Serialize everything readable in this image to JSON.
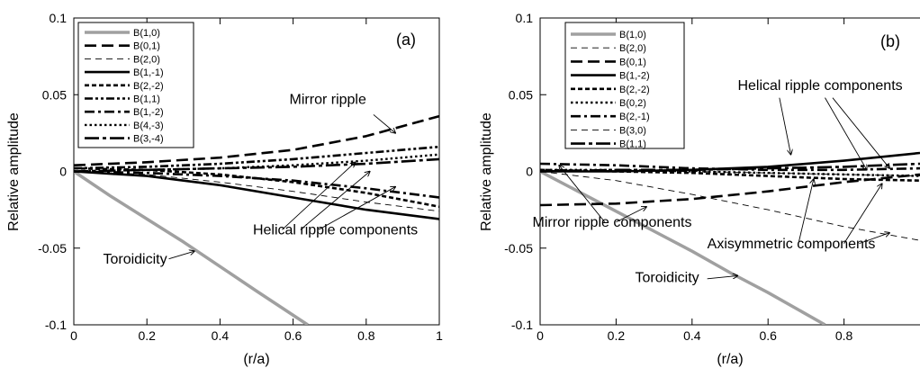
{
  "chart_data": [
    {
      "type": "line",
      "panel_label": "(a)",
      "xlabel": "(r/a)",
      "ylabel": "Relative amplitude",
      "xlim": [
        0,
        1
      ],
      "ylim": [
        -0.1,
        0.1
      ],
      "x_ticks": [
        "0",
        "0.2",
        "0.4",
        "0.6",
        "0.8",
        "1"
      ],
      "y_ticks": [
        "0.1",
        "0.05",
        "0",
        "-0.05",
        "-0.1"
      ],
      "x_tick_values": [
        0,
        0.2,
        0.4,
        0.6,
        0.8,
        1
      ],
      "y_tick_values": [
        0.1,
        0.05,
        0,
        -0.05,
        -0.1
      ],
      "legend_position": "top-left",
      "series": [
        {
          "name": "B(1,0)",
          "style": "gray",
          "x": [
            0,
            0.1,
            0.2,
            0.3,
            0.4,
            0.5,
            0.64
          ],
          "y": [
            0,
            -0.016,
            -0.031,
            -0.046,
            -0.062,
            -0.078,
            -0.1
          ]
        },
        {
          "name": "B(0,1)",
          "style": "longdash",
          "x": [
            0,
            0.2,
            0.4,
            0.6,
            0.8,
            1
          ],
          "y": [
            0.004,
            0.006,
            0.009,
            0.014,
            0.023,
            0.036
          ]
        },
        {
          "name": "B(2,0)",
          "style": "thindash",
          "x": [
            0,
            0.2,
            0.4,
            0.6,
            0.8,
            1
          ],
          "y": [
            0,
            -0.002,
            -0.007,
            -0.013,
            -0.02,
            -0.026
          ]
        },
        {
          "name": "B(1,-1)",
          "style": "solid",
          "x": [
            0,
            0.2,
            0.4,
            0.6,
            0.8,
            1
          ],
          "y": [
            0,
            -0.003,
            -0.009,
            -0.017,
            -0.025,
            -0.031
          ]
        },
        {
          "name": "B(2,-2)",
          "style": "shortdash",
          "x": [
            0,
            0.2,
            0.4,
            0.6,
            0.8,
            1
          ],
          "y": [
            0.002,
            0.001,
            -0.002,
            -0.007,
            -0.014,
            -0.023
          ]
        },
        {
          "name": "B(1,1)",
          "style": "dashdotdot",
          "x": [
            0,
            0.2,
            0.4,
            0.6,
            0.8,
            1
          ],
          "y": [
            0.002,
            0.003,
            0.005,
            0.008,
            0.012,
            0.016
          ]
        },
        {
          "name": "B(1,-2)",
          "style": "dashdot",
          "x": [
            0,
            0.2,
            0.4,
            0.6,
            0.8,
            1
          ],
          "y": [
            0,
            -0.001,
            -0.003,
            -0.006,
            -0.011,
            -0.017
          ]
        },
        {
          "name": "B(4,-3)",
          "style": "dotted",
          "x": [
            0,
            0.2,
            0.4,
            0.6,
            0.8,
            1
          ],
          "y": [
            0,
            0.001,
            0.002,
            0.004,
            0.007,
            0.011
          ]
        },
        {
          "name": "B(3,-4)",
          "style": "longdashdot",
          "x": [
            0,
            0.2,
            0.4,
            0.6,
            0.8,
            1
          ],
          "y": [
            0,
            0.001,
            0.002,
            0.003,
            0.005,
            0.008
          ]
        }
      ],
      "annotations": [
        {
          "text": "Mirror ripple",
          "x": 0.59,
          "y": 0.044,
          "arrows": [
            {
              "from": [
                0.82,
                0.037
              ],
              "to": [
                0.88,
                0.025
              ]
            }
          ]
        },
        {
          "text": "Helical ripple components",
          "x": 0.49,
          "y": -0.041,
          "arrows": [
            {
              "from": [
                0.57,
                -0.038
              ],
              "to": [
                0.77,
                0.006
              ]
            },
            {
              "from": [
                0.62,
                -0.038
              ],
              "to": [
                0.81,
                0.0
              ]
            },
            {
              "from": [
                0.67,
                -0.038
              ],
              "to": [
                0.88,
                -0.01
              ]
            }
          ]
        },
        {
          "text": "Toroidicity",
          "x": 0.08,
          "y": -0.06,
          "arrows": [
            {
              "from": [
                0.26,
                -0.057
              ],
              "to": [
                0.33,
                -0.052
              ]
            }
          ]
        }
      ]
    },
    {
      "type": "line",
      "panel_label": "(b)",
      "xlabel": "(r/a)",
      "ylabel": "Relative amplitude",
      "xlim": [
        0,
        1
      ],
      "ylim": [
        -0.1,
        0.1
      ],
      "x_ticks": [
        "0",
        "0.2",
        "0.4",
        "0.6",
        "0.8"
      ],
      "y_ticks": [
        "0.1",
        "0.05",
        "0",
        "-0.05",
        "-0.1"
      ],
      "x_tick_values": [
        0,
        0.2,
        0.4,
        0.6,
        0.8
      ],
      "y_tick_values": [
        0.1,
        0.05,
        0,
        -0.05,
        -0.1
      ],
      "legend_position": "top-left",
      "series": [
        {
          "name": "B(1,0)",
          "style": "gray",
          "x": [
            0,
            0.1,
            0.2,
            0.3,
            0.4,
            0.5,
            0.6,
            0.75
          ],
          "y": [
            0,
            -0.013,
            -0.026,
            -0.039,
            -0.052,
            -0.066,
            -0.079,
            -0.1
          ]
        },
        {
          "name": "B(2,0)",
          "style": "thindash",
          "x": [
            0,
            0.2,
            0.4,
            0.6,
            0.8,
            1
          ],
          "y": [
            0,
            -0.006,
            -0.015,
            -0.025,
            -0.036,
            -0.045
          ]
        },
        {
          "name": "B(0,1)",
          "style": "longdash",
          "x": [
            0,
            0.2,
            0.4,
            0.6,
            0.8,
            1
          ],
          "y": [
            -0.022,
            -0.021,
            -0.018,
            -0.013,
            -0.007,
            -0.002
          ]
        },
        {
          "name": "B(1,-2)",
          "style": "solid",
          "x": [
            0,
            0.2,
            0.4,
            0.6,
            0.8,
            1
          ],
          "y": [
            0,
            0.0,
            0.001,
            0.003,
            0.007,
            0.012
          ]
        },
        {
          "name": "B(2,-2)",
          "style": "shortdash",
          "x": [
            0,
            0.2,
            0.4,
            0.6,
            0.8,
            1
          ],
          "y": [
            0.001,
            0.0,
            -0.001,
            -0.003,
            -0.005,
            -0.006
          ]
        },
        {
          "name": "B(0,2)",
          "style": "dotted",
          "x": [
            0,
            0.2,
            0.4,
            0.6,
            0.8,
            1
          ],
          "y": [
            0.001,
            0.001,
            0.0,
            -0.001,
            -0.002,
            -0.003
          ]
        },
        {
          "name": "B(2,-1)",
          "style": "dashdot",
          "x": [
            0,
            0.2,
            0.4,
            0.6,
            0.8,
            1
          ],
          "y": [
            0.005,
            0.004,
            0.002,
            0.001,
            0.001,
            0.002
          ]
        },
        {
          "name": "B(3,0)",
          "style": "thindash",
          "x": [
            0,
            0.2,
            0.4,
            0.6,
            0.8,
            1
          ],
          "y": [
            0,
            0.0,
            0.0,
            -0.001,
            -0.002,
            -0.003
          ]
        },
        {
          "name": "B(1,1)",
          "style": "longdashdot",
          "x": [
            0,
            0.2,
            0.4,
            0.6,
            0.8,
            1
          ],
          "y": [
            0,
            0.001,
            0.001,
            0.002,
            0.003,
            0.005
          ]
        }
      ],
      "annotations": [
        {
          "text": "Helical ripple components",
          "x": 0.52,
          "y": 0.053,
          "arrows": [
            {
              "from": [
                0.63,
                0.048
              ],
              "to": [
                0.66,
                0.011
              ]
            },
            {
              "from": [
                0.75,
                0.048
              ],
              "to": [
                0.86,
                0.001
              ]
            },
            {
              "from": [
                0.77,
                0.048
              ],
              "to": [
                0.92,
                0.002
              ]
            }
          ]
        },
        {
          "text": "Mirror ripple components",
          "x": -0.02,
          "y": -0.036,
          "arrows": [
            {
              "from": [
                0.17,
                -0.033
              ],
              "to": [
                0.05,
                0.004
              ]
            },
            {
              "from": [
                0.2,
                -0.033
              ],
              "to": [
                0.28,
                -0.023
              ]
            }
          ]
        },
        {
          "text": "Axisymmetric components",
          "x": 0.44,
          "y": -0.05,
          "arrows": [
            {
              "from": [
                0.68,
                -0.047
              ],
              "to": [
                0.72,
                -0.005
              ]
            },
            {
              "from": [
                0.8,
                -0.047
              ],
              "to": [
                0.9,
                -0.008
              ]
            },
            {
              "from": [
                0.84,
                -0.047
              ],
              "to": [
                0.92,
                -0.04
              ]
            }
          ]
        },
        {
          "text": "Toroidicity",
          "x": 0.25,
          "y": -0.072,
          "arrows": [
            {
              "from": [
                0.44,
                -0.07
              ],
              "to": [
                0.52,
                -0.068
              ]
            }
          ]
        }
      ]
    }
  ]
}
